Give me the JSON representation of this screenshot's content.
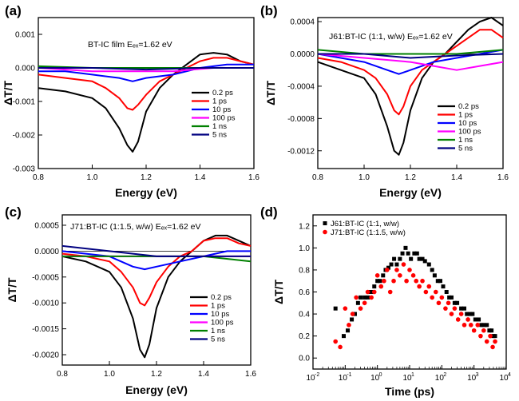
{
  "chart_data": [
    {
      "panel": "(a)",
      "type": "line",
      "annotation": "BT-IC film Eₑₓ=1.62 eV",
      "xlabel": "Energy (eV)",
      "ylabel": "ΔT/T",
      "xlim": [
        0.8,
        1.6
      ],
      "ylim": [
        -0.003,
        0.0015
      ],
      "xticks": [
        0.8,
        1.0,
        1.2,
        1.4,
        1.6
      ],
      "xtick_labels": [
        "0.8",
        "1.0",
        "1.2",
        "1.4",
        "1.6"
      ],
      "yticks": [
        -0.003,
        -0.002,
        -0.001,
        0.0,
        0.001
      ],
      "ytick_labels": [
        "-0.003",
        "-0.002",
        "-0.001",
        "0.000",
        "0.001"
      ],
      "legend_position": "right",
      "grid": false,
      "series": [
        {
          "name": "0.2 ps",
          "color": "#000000",
          "x": [
            0.8,
            0.9,
            1.0,
            1.05,
            1.1,
            1.13,
            1.15,
            1.17,
            1.2,
            1.25,
            1.3,
            1.35,
            1.4,
            1.45,
            1.5,
            1.55,
            1.6
          ],
          "y": [
            -0.0006,
            -0.0007,
            -0.0009,
            -0.0012,
            -0.0018,
            -0.0023,
            -0.0025,
            -0.0022,
            -0.0013,
            -0.0006,
            -0.0002,
            0.0001,
            0.0004,
            0.00045,
            0.0004,
            0.0002,
            0.0001
          ]
        },
        {
          "name": "1 ps",
          "color": "#ff0000",
          "x": [
            0.8,
            0.9,
            1.0,
            1.05,
            1.1,
            1.13,
            1.15,
            1.17,
            1.2,
            1.25,
            1.3,
            1.35,
            1.4,
            1.45,
            1.5,
            1.55,
            1.6
          ],
          "y": [
            -0.0002,
            -0.0003,
            -0.0004,
            -0.0006,
            -0.0009,
            -0.0012,
            -0.00125,
            -0.0011,
            -0.0008,
            -0.0004,
            -0.0002,
            0.0,
            0.0002,
            0.0003,
            0.0003,
            0.0002,
            0.0001
          ]
        },
        {
          "name": "10 ps",
          "color": "#0000ff",
          "x": [
            0.8,
            0.9,
            1.0,
            1.1,
            1.15,
            1.2,
            1.3,
            1.4,
            1.5,
            1.6
          ],
          "y": [
            -0.0001,
            -0.0001,
            -0.0002,
            -0.0003,
            -0.0004,
            -0.0003,
            -0.0002,
            0.0,
            0.0001,
            0.0001
          ]
        },
        {
          "name": "100 ps",
          "color": "#ff00ff",
          "x": [
            0.8,
            1.0,
            1.15,
            1.3,
            1.45,
            1.6
          ],
          "y": [
            0.0,
            -0.0001,
            -0.0001,
            -0.0001,
            0.0,
            0.0
          ]
        },
        {
          "name": "1 ns",
          "color": "#008000",
          "x": [
            0.8,
            1.0,
            1.2,
            1.4,
            1.6
          ],
          "y": [
            5e-05,
            0.0,
            0.0,
            0.0,
            0.0
          ]
        },
        {
          "name": "5 ns",
          "color": "#000080",
          "x": [
            0.8,
            1.0,
            1.2,
            1.4,
            1.6
          ],
          "y": [
            0.0,
            0.0,
            -5e-05,
            0.0,
            0.0
          ]
        }
      ]
    },
    {
      "panel": "(b)",
      "type": "line",
      "annotation": "J61:BT-IC (1:1, w/w) Eₑₓ=1.62 eV",
      "xlabel": "Energy (eV)",
      "ylabel": "ΔT/T",
      "xlim": [
        0.8,
        1.6
      ],
      "ylim": [
        -0.00142,
        0.00045
      ],
      "xticks": [
        0.8,
        1.0,
        1.2,
        1.4,
        1.6
      ],
      "xtick_labels": [
        "0.8",
        "1.0",
        "1.2",
        "1.4",
        "1.6"
      ],
      "yticks": [
        -0.0012,
        -0.0008,
        -0.0004,
        0.0,
        0.0004
      ],
      "ytick_labels": [
        "-0.0012",
        "-0.0008",
        "-0.0004",
        "0.0000",
        "0.0004"
      ],
      "legend_position": "right",
      "grid": false,
      "series": [
        {
          "name": "0.2 ps",
          "color": "#000000",
          "x": [
            0.8,
            0.9,
            1.0,
            1.05,
            1.1,
            1.13,
            1.15,
            1.17,
            1.2,
            1.25,
            1.3,
            1.35,
            1.4,
            1.45,
            1.5,
            1.55,
            1.6
          ],
          "y": [
            -0.0001,
            -0.0002,
            -0.0003,
            -0.0005,
            -0.0009,
            -0.0012,
            -0.00125,
            -0.0011,
            -0.0007,
            -0.0003,
            -0.0001,
            0.0,
            0.00015,
            0.0003,
            0.0004,
            0.00045,
            0.00035
          ]
        },
        {
          "name": "1 ps",
          "color": "#ff0000",
          "x": [
            0.8,
            0.9,
            1.0,
            1.05,
            1.1,
            1.13,
            1.15,
            1.17,
            1.2,
            1.25,
            1.3,
            1.35,
            1.4,
            1.45,
            1.5,
            1.55,
            1.6
          ],
          "y": [
            -5e-05,
            -0.0001,
            -0.0002,
            -0.0003,
            -0.0005,
            -0.0007,
            -0.00075,
            -0.00065,
            -0.0004,
            -0.0002,
            -0.0001,
            0.0,
            0.0001,
            0.0002,
            0.0003,
            0.0003,
            0.0002
          ]
        },
        {
          "name": "10 ps",
          "color": "#0000ff",
          "x": [
            0.8,
            1.0,
            1.1,
            1.15,
            1.2,
            1.3,
            1.4,
            1.5,
            1.6
          ],
          "y": [
            0.0,
            -0.0001,
            -0.0002,
            -0.00025,
            -0.0002,
            -0.0001,
            -5e-05,
            0.0,
            5e-05
          ]
        },
        {
          "name": "100 ps",
          "color": "#ff00ff",
          "x": [
            0.8,
            1.0,
            1.2,
            1.3,
            1.4,
            1.5,
            1.6
          ],
          "y": [
            0.0,
            -5e-05,
            -0.0001,
            -0.00015,
            -0.0002,
            -0.00015,
            -0.0001
          ]
        },
        {
          "name": "1 ns",
          "color": "#008000",
          "x": [
            0.8,
            1.0,
            1.2,
            1.4,
            1.6
          ],
          "y": [
            5e-05,
            0.0,
            0.0,
            0.0,
            5e-05
          ]
        },
        {
          "name": "5 ns",
          "color": "#000080",
          "x": [
            0.8,
            1.0,
            1.2,
            1.4,
            1.6
          ],
          "y": [
            0.0,
            0.0,
            -5e-05,
            -2e-05,
            0.0
          ]
        }
      ]
    },
    {
      "panel": "(c)",
      "type": "line",
      "annotation": "J71:BT-IC (1:1.5, w/w)  Eₑₓ=1.62 eV",
      "xlabel": "Energy (eV)",
      "ylabel": "ΔT/T",
      "xlim": [
        0.8,
        1.6
      ],
      "ylim": [
        -0.0022,
        0.0007
      ],
      "xticks": [
        0.8,
        1.0,
        1.2,
        1.4,
        1.6
      ],
      "xtick_labels": [
        "0.8",
        "1.0",
        "1.2",
        "1.4",
        "1.6"
      ],
      "yticks": [
        -0.002,
        -0.0015,
        -0.001,
        -0.0005,
        0.0,
        0.0005
      ],
      "ytick_labels": [
        "-0.0020",
        "-0.0015",
        "-0.0010",
        "-0.0005",
        "0.0000",
        "0.0005"
      ],
      "legend_position": "right",
      "grid": false,
      "series": [
        {
          "name": "0.2 ps",
          "color": "#000000",
          "x": [
            0.8,
            0.9,
            1.0,
            1.05,
            1.1,
            1.13,
            1.15,
            1.17,
            1.2,
            1.25,
            1.3,
            1.35,
            1.4,
            1.45,
            1.5,
            1.55,
            1.6
          ],
          "y": [
            -0.0001,
            -0.0002,
            -0.0004,
            -0.0007,
            -0.0013,
            -0.0019,
            -0.00205,
            -0.0018,
            -0.0011,
            -0.0005,
            -0.0002,
            0.0,
            0.0002,
            0.0003,
            0.0003,
            0.0002,
            0.0001
          ]
        },
        {
          "name": "1 ps",
          "color": "#ff0000",
          "x": [
            0.8,
            0.9,
            1.0,
            1.05,
            1.1,
            1.13,
            1.15,
            1.17,
            1.2,
            1.25,
            1.3,
            1.35,
            1.4,
            1.45,
            1.5,
            1.55,
            1.6
          ],
          "y": [
            -5e-05,
            -0.0001,
            -0.0002,
            -0.0004,
            -0.0007,
            -0.001,
            -0.00105,
            -0.0009,
            -0.0006,
            -0.0003,
            -0.0001,
            0.0,
            0.0002,
            0.00025,
            0.00025,
            0.00015,
            0.0001
          ]
        },
        {
          "name": "10 ps",
          "color": "#0000ff",
          "x": [
            0.8,
            1.0,
            1.1,
            1.15,
            1.2,
            1.3,
            1.4,
            1.5,
            1.6
          ],
          "y": [
            0.0,
            -0.0001,
            -0.0003,
            -0.00035,
            -0.0003,
            -0.0002,
            -0.0001,
            0.0,
            0.0
          ]
        },
        {
          "name": "100 ps",
          "color": "#ff00ff",
          "x": [
            0.8,
            1.0,
            1.2,
            1.4,
            1.6
          ],
          "y": [
            -0.0001,
            -0.0001,
            -0.0001,
            -0.0001,
            -0.0001
          ]
        },
        {
          "name": "1 ns",
          "color": "#008000",
          "x": [
            0.8,
            1.0,
            1.2,
            1.4,
            1.6
          ],
          "y": [
            -0.0001,
            -0.0001,
            -0.0001,
            -0.0001,
            -0.0002
          ]
        },
        {
          "name": "5 ns",
          "color": "#000080",
          "x": [
            0.8,
            1.0,
            1.2,
            1.4,
            1.6
          ],
          "y": [
            0.0001,
            0.0,
            -0.0001,
            -0.0001,
            -0.0001
          ]
        }
      ]
    },
    {
      "panel": "(d)",
      "type": "scatter",
      "xlabel": "Time (ps)",
      "ylabel": "ΔT/T",
      "xscale": "log",
      "xlim": [
        0.01,
        10000
      ],
      "ylim": [
        -0.1,
        1.3
      ],
      "xticks": [
        0.01,
        0.1,
        1,
        10,
        100,
        1000,
        10000
      ],
      "xtick_labels": [
        "10",
        "10",
        "10",
        "10",
        "10",
        "10",
        "10"
      ],
      "xtick_exponents": [
        "-2",
        "-1",
        "0",
        "1",
        "2",
        "3",
        "4"
      ],
      "yticks": [
        0.0,
        0.2,
        0.4,
        0.6,
        0.8,
        1.0,
        1.2
      ],
      "ytick_labels": [
        "0.0",
        "0.2",
        "0.4",
        "0.6",
        "0.8",
        "1.0",
        "1.2"
      ],
      "legend_position": "top-left",
      "grid": false,
      "series": [
        {
          "name": "J61:BT-IC (1:1, w/w)",
          "color": "#000000",
          "marker": "square",
          "x": [
            0.05,
            0.09,
            0.12,
            0.16,
            0.2,
            0.25,
            0.3,
            0.4,
            0.5,
            0.6,
            0.7,
            0.8,
            1.0,
            1.2,
            1.5,
            1.8,
            2.2,
            2.7,
            3.3,
            4.0,
            5.0,
            6.0,
            7.5,
            9.0,
            11,
            14,
            17,
            20,
            25,
            30,
            40,
            50,
            60,
            75,
            90,
            110,
            140,
            170,
            200,
            250,
            300,
            400,
            500,
            600,
            750,
            900,
            1100,
            1400,
            1700,
            2000,
            2500,
            3000,
            3500,
            4000,
            4500
          ],
          "y": [
            0.45,
            0.2,
            0.25,
            0.35,
            0.4,
            0.5,
            0.55,
            0.55,
            0.55,
            0.6,
            0.6,
            0.65,
            0.7,
            0.7,
            0.75,
            0.8,
            0.82,
            0.85,
            0.9,
            0.85,
            0.9,
            0.95,
            1.0,
            0.95,
            0.9,
            0.95,
            0.95,
            0.9,
            0.9,
            0.88,
            0.85,
            0.8,
            0.75,
            0.7,
            0.7,
            0.65,
            0.6,
            0.55,
            0.55,
            0.5,
            0.5,
            0.45,
            0.45,
            0.4,
            0.4,
            0.4,
            0.35,
            0.35,
            0.3,
            0.3,
            0.3,
            0.25,
            0.25,
            0.2,
            0.2
          ]
        },
        {
          "name": "J71:BT-IC (1:1.5, w/w)",
          "color": "#ff0000",
          "marker": "circle",
          "x": [
            0.05,
            0.07,
            0.1,
            0.13,
            0.17,
            0.22,
            0.3,
            0.4,
            0.5,
            0.65,
            0.8,
            1.0,
            1.3,
            1.6,
            2.0,
            2.5,
            3.2,
            4.0,
            5.0,
            6.5,
            8.0,
            10,
            13,
            16,
            20,
            25,
            32,
            40,
            50,
            65,
            80,
            100,
            130,
            160,
            200,
            250,
            320,
            400,
            500,
            650,
            800,
            1000,
            1300,
            1600,
            2000,
            2500,
            3200,
            3800,
            4500
          ],
          "y": [
            0.15,
            0.1,
            0.45,
            0.3,
            0.4,
            0.55,
            0.45,
            0.5,
            0.6,
            0.55,
            0.6,
            0.75,
            0.65,
            0.7,
            0.8,
            0.6,
            0.7,
            0.8,
            0.75,
            0.85,
            0.7,
            0.8,
            0.75,
            0.7,
            0.65,
            0.7,
            0.6,
            0.65,
            0.55,
            0.6,
            0.5,
            0.55,
            0.45,
            0.5,
            0.4,
            0.45,
            0.35,
            0.4,
            0.3,
            0.35,
            0.3,
            0.25,
            0.3,
            0.2,
            0.25,
            0.15,
            0.2,
            0.1,
            0.15
          ]
        }
      ]
    }
  ]
}
